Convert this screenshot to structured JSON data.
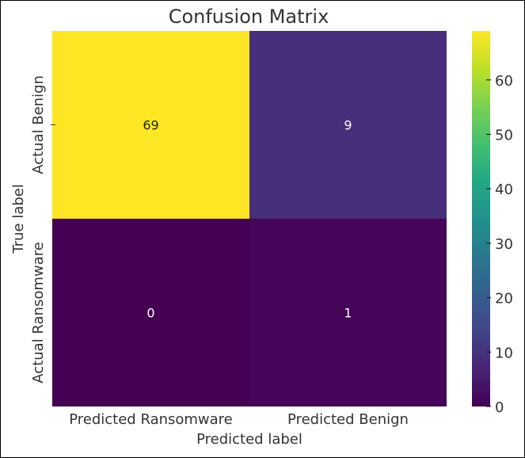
{
  "chart_data": {
    "type": "heatmap",
    "title": "Confusion Matrix",
    "xlabel": "Predicted label",
    "ylabel": "True label",
    "x_categories": [
      "Predicted Ransomware",
      "Predicted Benign"
    ],
    "y_categories": [
      "Actual Benign",
      "Actual Ransomware"
    ],
    "values": [
      [
        69,
        9
      ],
      [
        0,
        1
      ]
    ],
    "colormap": "viridis",
    "colorbar": {
      "ticks": [
        0,
        10,
        20,
        30,
        40,
        50,
        60
      ],
      "range": [
        0,
        69
      ]
    },
    "grid": false,
    "legend": "colorbar-right"
  }
}
